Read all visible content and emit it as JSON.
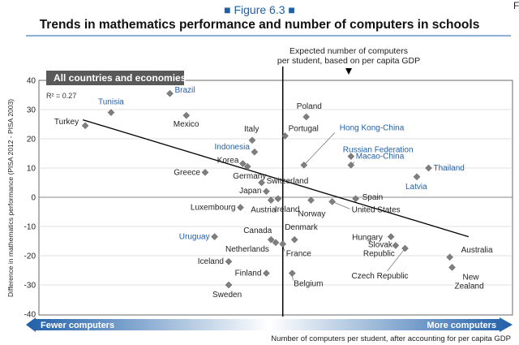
{
  "figure": {
    "label": "Figure 6.3",
    "label_marker": "■",
    "title": "Trends in mathematics performance and number of computers in schools",
    "corner_glyph": "F"
  },
  "chart_data": {
    "type": "scatter",
    "panel_label": "All countries and economies",
    "r_squared": "R² = 0.27",
    "ylabel": "Difference in mathematics performance (PISA 2012 - PISA 2003)",
    "xlabel": "Number of computers per student, after accounting for per capita GDP",
    "ylim": [
      -40,
      40
    ],
    "xlim": [
      -1,
      1
    ],
    "y_ticks": [
      "40",
      "30",
      "20",
      "10",
      "0",
      "-10",
      "-20",
      "-30",
      "-40"
    ],
    "y_tick_values": [
      40,
      30,
      20,
      10,
      0,
      -10,
      -20,
      -30,
      -40
    ],
    "expected_line": {
      "x": 0.03,
      "label_line1": "Expected number of computers",
      "label_line2": "per student, based on per capita GDP"
    },
    "arrow_left": "Fewer computers",
    "arrow_right": "More computers",
    "trend_line": {
      "x1": -0.82,
      "y1": 26.5,
      "x2": 0.82,
      "y2": -13.5
    },
    "colors": {
      "marker": "#7f7f7f",
      "blue_label": "#1f5fa8",
      "panel_bg": "#595959",
      "arrow_blue": "#1f5fa8",
      "arrow_light": "#d6e4f3"
    },
    "points": [
      {
        "name": "Turkey",
        "x": -0.81,
        "y": 24.5,
        "color": "dark"
      },
      {
        "name": "Tunisia",
        "x": -0.7,
        "y": 29.0,
        "color": "blue"
      },
      {
        "name": "Brazil",
        "x": -0.45,
        "y": 35.5,
        "color": "blue"
      },
      {
        "name": "Mexico",
        "x": -0.38,
        "y": 28.0,
        "color": "dark"
      },
      {
        "name": "Greece",
        "x": -0.3,
        "y": 8.5,
        "color": "dark"
      },
      {
        "name": "Korea",
        "x": -0.14,
        "y": 11.5,
        "color": "dark"
      },
      {
        "name": "Germany",
        "x": -0.12,
        "y": 10.5,
        "color": "dark"
      },
      {
        "name": "Indonesia",
        "x": -0.09,
        "y": 15.5,
        "color": "blue"
      },
      {
        "name": "Italy",
        "x": -0.1,
        "y": 19.5,
        "color": "dark"
      },
      {
        "name": "Switzerland",
        "x": -0.06,
        "y": 5.0,
        "color": "dark"
      },
      {
        "name": "Japan",
        "x": -0.04,
        "y": 2.0,
        "color": "dark"
      },
      {
        "name": "Luxembourg",
        "x": -0.15,
        "y": -3.5,
        "color": "dark"
      },
      {
        "name": "Austria",
        "x": -0.02,
        "y": -1.0,
        "color": "dark"
      },
      {
        "name": "Portugal",
        "x": 0.04,
        "y": 21.0,
        "color": "dark"
      },
      {
        "name": "Poland",
        "x": 0.13,
        "y": 27.5,
        "color": "dark"
      },
      {
        "name": "Hong Kong-China",
        "x": 0.12,
        "y": 11.0,
        "color": "blue"
      },
      {
        "name": "Ireland",
        "x": 0.01,
        "y": -0.5,
        "color": "dark"
      },
      {
        "name": "Norway",
        "x": 0.15,
        "y": -1.0,
        "color": "dark"
      },
      {
        "name": "Spain",
        "x": 0.34,
        "y": -0.5,
        "color": "dark"
      },
      {
        "name": "United States",
        "x": 0.24,
        "y": -1.5,
        "color": "dark"
      },
      {
        "name": "Russian Federation",
        "x": 0.32,
        "y": 14.0,
        "color": "blue"
      },
      {
        "name": "Macao-China",
        "x": 0.32,
        "y": 11.0,
        "color": "blue"
      },
      {
        "name": "Thailand",
        "x": 0.65,
        "y": 10.0,
        "color": "blue"
      },
      {
        "name": "Latvia",
        "x": 0.6,
        "y": 7.0,
        "color": "blue"
      },
      {
        "name": "Uruguay",
        "x": -0.26,
        "y": -13.5,
        "color": "blue"
      },
      {
        "name": "Canada",
        "x": -0.02,
        "y": -14.5,
        "color": "dark"
      },
      {
        "name": "Netherlands",
        "x": 0.0,
        "y": -15.5,
        "color": "dark"
      },
      {
        "name": "Denmark",
        "x": 0.08,
        "y": -14.5,
        "color": "dark"
      },
      {
        "name": "France",
        "x": 0.03,
        "y": -16.0,
        "color": "dark"
      },
      {
        "name": "Iceland",
        "x": -0.2,
        "y": -22.0,
        "color": "dark"
      },
      {
        "name": "Finland",
        "x": -0.04,
        "y": -26.0,
        "color": "dark"
      },
      {
        "name": "Belgium",
        "x": 0.07,
        "y": -26.0,
        "color": "dark"
      },
      {
        "name": "Sweden",
        "x": -0.2,
        "y": -30.0,
        "color": "dark"
      },
      {
        "name": "Hungary",
        "x": 0.49,
        "y": -13.5,
        "color": "dark"
      },
      {
        "name": "Slovak Republic",
        "x": 0.51,
        "y": -16.5,
        "color": "dark"
      },
      {
        "name": "Czech Republic",
        "x": 0.55,
        "y": -17.5,
        "color": "dark"
      },
      {
        "name": "Australia",
        "x": 0.74,
        "y": -20.5,
        "color": "dark"
      },
      {
        "name": "New Zealand",
        "x": 0.75,
        "y": -24.0,
        "color": "dark"
      }
    ]
  }
}
